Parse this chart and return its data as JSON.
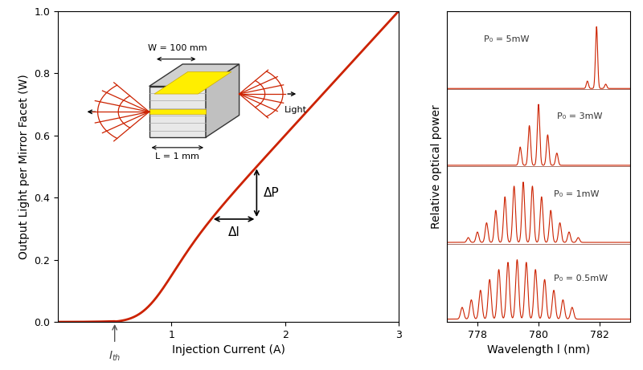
{
  "line_color": "#cc2200",
  "bg_color": "#ffffff",
  "left_ylabel": "Output Light per Mirror Facet (W)",
  "left_xlabel": "Injection Current (A)",
  "left_xlim": [
    0,
    3
  ],
  "left_ylim": [
    0,
    1.0
  ],
  "left_xticks": [
    1,
    2,
    3
  ],
  "left_yticks": [
    0.0,
    0.2,
    0.4,
    0.6,
    0.8,
    1.0
  ],
  "right_xlabel": "Wavelength l (nm)",
  "right_ylabel": "Relative optical power",
  "right_xlim": [
    777,
    783
  ],
  "right_xticks": [
    778,
    780,
    782
  ],
  "spectrum_labels": [
    "P₀ = 5mW",
    "P₀ = 3mW",
    "P₀ = 1mW",
    "P₀ = 0.5mW"
  ],
  "ith": 0.5,
  "deltaP_text": "ΔP",
  "deltaI_text": "ΔI",
  "W_label": "W = 100 mm",
  "L_label": "L = 1 mm",
  "Light_label": "Light"
}
